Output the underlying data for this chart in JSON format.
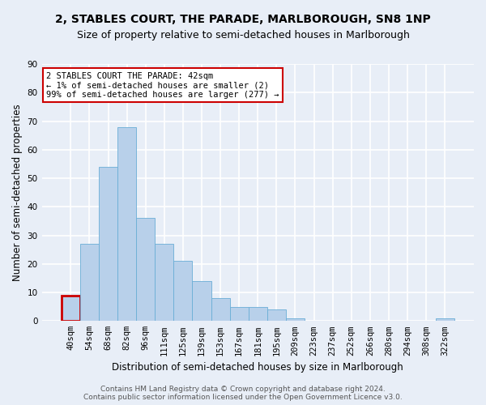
{
  "title": "2, STABLES COURT, THE PARADE, MARLBOROUGH, SN8 1NP",
  "subtitle": "Size of property relative to semi-detached houses in Marlborough",
  "xlabel": "Distribution of semi-detached houses by size in Marlborough",
  "ylabel": "Number of semi-detached properties",
  "categories": [
    "40sqm",
    "54sqm",
    "68sqm",
    "82sqm",
    "96sqm",
    "111sqm",
    "125sqm",
    "139sqm",
    "153sqm",
    "167sqm",
    "181sqm",
    "195sqm",
    "209sqm",
    "223sqm",
    "237sqm",
    "252sqm",
    "266sqm",
    "280sqm",
    "294sqm",
    "308sqm",
    "322sqm"
  ],
  "values": [
    9,
    27,
    54,
    68,
    36,
    27,
    21,
    14,
    8,
    5,
    5,
    4,
    1,
    0,
    0,
    0,
    0,
    0,
    0,
    0,
    1
  ],
  "bar_color": "#b8d0ea",
  "bar_edge_color": "#6aaed6",
  "highlight_bar_index": 0,
  "highlight_color": "#cc0000",
  "annotation_text": "2 STABLES COURT THE PARADE: 42sqm\n← 1% of semi-detached houses are smaller (2)\n99% of semi-detached houses are larger (277) →",
  "annotation_box_color": "#ffffff",
  "annotation_box_edge": "#cc0000",
  "ylim": [
    0,
    90
  ],
  "yticks": [
    0,
    10,
    20,
    30,
    40,
    50,
    60,
    70,
    80,
    90
  ],
  "footer1": "Contains HM Land Registry data © Crown copyright and database right 2024.",
  "footer2": "Contains public sector information licensed under the Open Government Licence v3.0.",
  "bg_color": "#e8eef7",
  "grid_color": "#ffffff",
  "title_fontsize": 10,
  "subtitle_fontsize": 9,
  "axis_label_fontsize": 8.5,
  "tick_fontsize": 7.5,
  "footer_fontsize": 6.5,
  "annotation_fontsize": 7.5
}
